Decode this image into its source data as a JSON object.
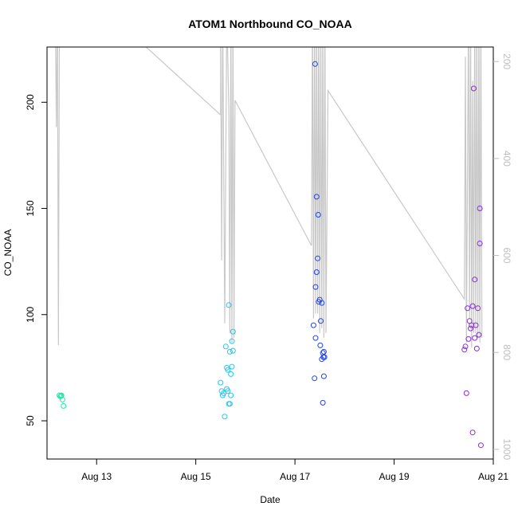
{
  "chart_data": {
    "type": "scatter",
    "title": "ATOM1 Northbound CO_NOAA",
    "xlabel": "Date",
    "ylabel": "CO_NOAA",
    "x_axis": {
      "type": "date",
      "range": [
        "2016-08-12T00:00",
        "2016-08-21T00:00"
      ],
      "ticks": [
        {
          "value": "2016-08-13",
          "label": "Aug 13"
        },
        {
          "value": "2016-08-15",
          "label": "Aug 15"
        },
        {
          "value": "2016-08-17",
          "label": "Aug 17"
        },
        {
          "value": "2016-08-19",
          "label": "Aug 19"
        },
        {
          "value": "2016-08-21",
          "label": "Aug 21"
        }
      ]
    },
    "y_axis": {
      "range": [
        32,
        226
      ],
      "ticks": [
        50,
        100,
        150,
        200
      ]
    },
    "y2_axis": {
      "reversed": true,
      "range": [
        1020,
        170
      ],
      "ticks": [
        200,
        400,
        600,
        800,
        1000
      ],
      "color": "#bebebe"
    },
    "grid": false,
    "legend": "none",
    "colors": {
      "axis": "#000000",
      "pressure_line": "#c8c8c8"
    },
    "series": [
      {
        "color": "#22e8a8",
        "points": [
          {
            "x": "2016-08-12T06:00",
            "y": 62
          },
          {
            "x": "2016-08-12T06:30",
            "y": 61.5
          },
          {
            "x": "2016-08-12T07:00",
            "y": 62
          },
          {
            "x": "2016-08-12T06:45",
            "y": 61.8
          },
          {
            "x": "2016-08-12T07:30",
            "y": 60
          },
          {
            "x": "2016-08-12T08:00",
            "y": 57
          }
        ]
      },
      {
        "color": "#22c8ee",
        "points": [
          {
            "x": "2016-08-15T12:00",
            "y": 68
          },
          {
            "x": "2016-08-15T12:30",
            "y": 64
          },
          {
            "x": "2016-08-15T13:00",
            "y": 62
          },
          {
            "x": "2016-08-15T13:30",
            "y": 63
          },
          {
            "x": "2016-08-15T14:00",
            "y": 52
          },
          {
            "x": "2016-08-15T14:30",
            "y": 85
          },
          {
            "x": "2016-08-15T15:00",
            "y": 75
          },
          {
            "x": "2016-08-15T15:30",
            "y": 74
          },
          {
            "x": "2016-08-15T15:00",
            "y": 65
          },
          {
            "x": "2016-08-15T15:30",
            "y": 64
          },
          {
            "x": "2016-08-15T16:00",
            "y": 104.5
          },
          {
            "x": "2016-08-15T16:30",
            "y": 82.5
          },
          {
            "x": "2016-08-15T16:00",
            "y": 58
          },
          {
            "x": "2016-08-15T16:30",
            "y": 58
          },
          {
            "x": "2016-08-15T17:00",
            "y": 72
          },
          {
            "x": "2016-08-15T17:00",
            "y": 62
          },
          {
            "x": "2016-08-15T17:30",
            "y": 75.5
          },
          {
            "x": "2016-08-15T17:30",
            "y": 87.5
          },
          {
            "x": "2016-08-15T18:00",
            "y": 92
          },
          {
            "x": "2016-08-15T18:00",
            "y": 83
          }
        ]
      },
      {
        "color": "#2244ee",
        "points": [
          {
            "x": "2016-08-17T09:00",
            "y": 95
          },
          {
            "x": "2016-08-17T09:30",
            "y": 70
          },
          {
            "x": "2016-08-17T09:45",
            "y": 218
          },
          {
            "x": "2016-08-17T10:00",
            "y": 89
          },
          {
            "x": "2016-08-17T10:00",
            "y": 113
          },
          {
            "x": "2016-08-17T10:30",
            "y": 155.5
          },
          {
            "x": "2016-08-17T10:30",
            "y": 120
          },
          {
            "x": "2016-08-17T11:00",
            "y": 126.5
          },
          {
            "x": "2016-08-17T11:15",
            "y": 147
          },
          {
            "x": "2016-08-17T11:30",
            "y": 106
          },
          {
            "x": "2016-08-17T12:00",
            "y": 107
          },
          {
            "x": "2016-08-17T12:15",
            "y": 85.5
          },
          {
            "x": "2016-08-17T12:30",
            "y": 97
          },
          {
            "x": "2016-08-17T13:00",
            "y": 105.5
          },
          {
            "x": "2016-08-17T13:00",
            "y": 79
          },
          {
            "x": "2016-08-17T13:30",
            "y": 82
          },
          {
            "x": "2016-08-17T13:45",
            "y": 80
          },
          {
            "x": "2016-08-17T14:00",
            "y": 82.5
          },
          {
            "x": "2016-08-17T14:00",
            "y": 71
          },
          {
            "x": "2016-08-17T14:15",
            "y": 80
          },
          {
            "x": "2016-08-17T13:30",
            "y": 58.5
          }
        ]
      },
      {
        "color": "#8a2bdf",
        "points": [
          {
            "x": "2016-08-20T10:00",
            "y": 83.5
          },
          {
            "x": "2016-08-20T10:30",
            "y": 85
          },
          {
            "x": "2016-08-20T11:00",
            "y": 63
          },
          {
            "x": "2016-08-20T11:30",
            "y": 103
          },
          {
            "x": "2016-08-20T12:00",
            "y": 88.5
          },
          {
            "x": "2016-08-20T12:30",
            "y": 97
          },
          {
            "x": "2016-08-20T13:00",
            "y": 93.5
          },
          {
            "x": "2016-08-20T13:30",
            "y": 95
          },
          {
            "x": "2016-08-20T14:00",
            "y": 104
          },
          {
            "x": "2016-08-20T14:00",
            "y": 44.5
          },
          {
            "x": "2016-08-20T14:30",
            "y": 206.5
          },
          {
            "x": "2016-08-20T15:00",
            "y": 116.5
          },
          {
            "x": "2016-08-20T15:00",
            "y": 89
          },
          {
            "x": "2016-08-20T15:30",
            "y": 95
          },
          {
            "x": "2016-08-20T16:00",
            "y": 84
          },
          {
            "x": "2016-08-20T16:30",
            "y": 103
          },
          {
            "x": "2016-08-20T17:00",
            "y": 90.5
          },
          {
            "x": "2016-08-20T17:30",
            "y": 133.5
          },
          {
            "x": "2016-08-20T17:30",
            "y": 150
          },
          {
            "x": "2016-08-20T18:00",
            "y": 38.5
          }
        ]
      }
    ],
    "pressure_series": {
      "axis": "y2",
      "points": [
        {
          "x": "2016-08-12T04:00",
          "y": 90
        },
        {
          "x": "2016-08-12T04:30",
          "y": 335
        },
        {
          "x": "2016-08-12T05:00",
          "y": 90
        },
        {
          "x": "2016-08-12T05:30",
          "y": 785
        },
        {
          "x": "2016-08-12T06:00",
          "y": 90
        },
        {
          "x": "2016-08-12T07:00",
          "y": 90
        },
        {
          "x": "2016-08-14T00:00",
          "y": 170
        },
        {
          "x": "2016-08-15T12:00",
          "y": 310
        },
        {
          "x": "2016-08-15T12:00",
          "y": 90
        },
        {
          "x": "2016-08-15T12:30",
          "y": 610
        },
        {
          "x": "2016-08-15T13:00",
          "y": 90
        },
        {
          "x": "2016-08-15T14:00",
          "y": 740
        },
        {
          "x": "2016-08-15T15:00",
          "y": 90
        },
        {
          "x": "2016-08-15T16:00",
          "y": 300
        },
        {
          "x": "2016-08-15T16:30",
          "y": 760
        },
        {
          "x": "2016-08-15T17:00",
          "y": 90
        },
        {
          "x": "2016-08-15T17:30",
          "y": 780
        },
        {
          "x": "2016-08-15T18:00",
          "y": 90
        },
        {
          "x": "2016-08-15T18:30",
          "y": 770
        },
        {
          "x": "2016-08-15T19:00",
          "y": 280
        },
        {
          "x": "2016-08-17T08:00",
          "y": 580
        },
        {
          "x": "2016-08-17T08:30",
          "y": 90
        },
        {
          "x": "2016-08-17T09:00",
          "y": 730
        },
        {
          "x": "2016-08-17T09:30",
          "y": 90
        },
        {
          "x": "2016-08-17T10:00",
          "y": 720
        },
        {
          "x": "2016-08-17T10:30",
          "y": 90
        },
        {
          "x": "2016-08-17T11:00",
          "y": 720
        },
        {
          "x": "2016-08-17T11:30",
          "y": 90
        },
        {
          "x": "2016-08-17T12:00",
          "y": 760
        },
        {
          "x": "2016-08-17T12:30",
          "y": 90
        },
        {
          "x": "2016-08-17T13:00",
          "y": 750
        },
        {
          "x": "2016-08-17T13:30",
          "y": 90
        },
        {
          "x": "2016-08-17T14:00",
          "y": 770
        },
        {
          "x": "2016-08-17T14:30",
          "y": 90
        },
        {
          "x": "2016-08-17T15:00",
          "y": 760
        },
        {
          "x": "2016-08-17T16:00",
          "y": 260
        },
        {
          "x": "2016-08-20T10:00",
          "y": 690
        },
        {
          "x": "2016-08-20T10:30",
          "y": 190
        },
        {
          "x": "2016-08-20T11:00",
          "y": 780
        },
        {
          "x": "2016-08-20T12:00",
          "y": 90
        },
        {
          "x": "2016-08-20T12:30",
          "y": 730
        },
        {
          "x": "2016-08-20T13:00",
          "y": 90
        },
        {
          "x": "2016-08-20T13:30",
          "y": 790
        },
        {
          "x": "2016-08-20T14:00",
          "y": 240
        },
        {
          "x": "2016-08-20T14:30",
          "y": 760
        },
        {
          "x": "2016-08-20T15:00",
          "y": 90
        },
        {
          "x": "2016-08-20T15:30",
          "y": 760
        },
        {
          "x": "2016-08-20T16:00",
          "y": 90
        },
        {
          "x": "2016-08-20T16:30",
          "y": 770
        },
        {
          "x": "2016-08-20T17:00",
          "y": 90
        },
        {
          "x": "2016-08-20T17:30",
          "y": 780
        },
        {
          "x": "2016-08-20T18:00",
          "y": 90
        },
        {
          "x": "2016-08-20T18:30",
          "y": 770
        }
      ]
    }
  }
}
